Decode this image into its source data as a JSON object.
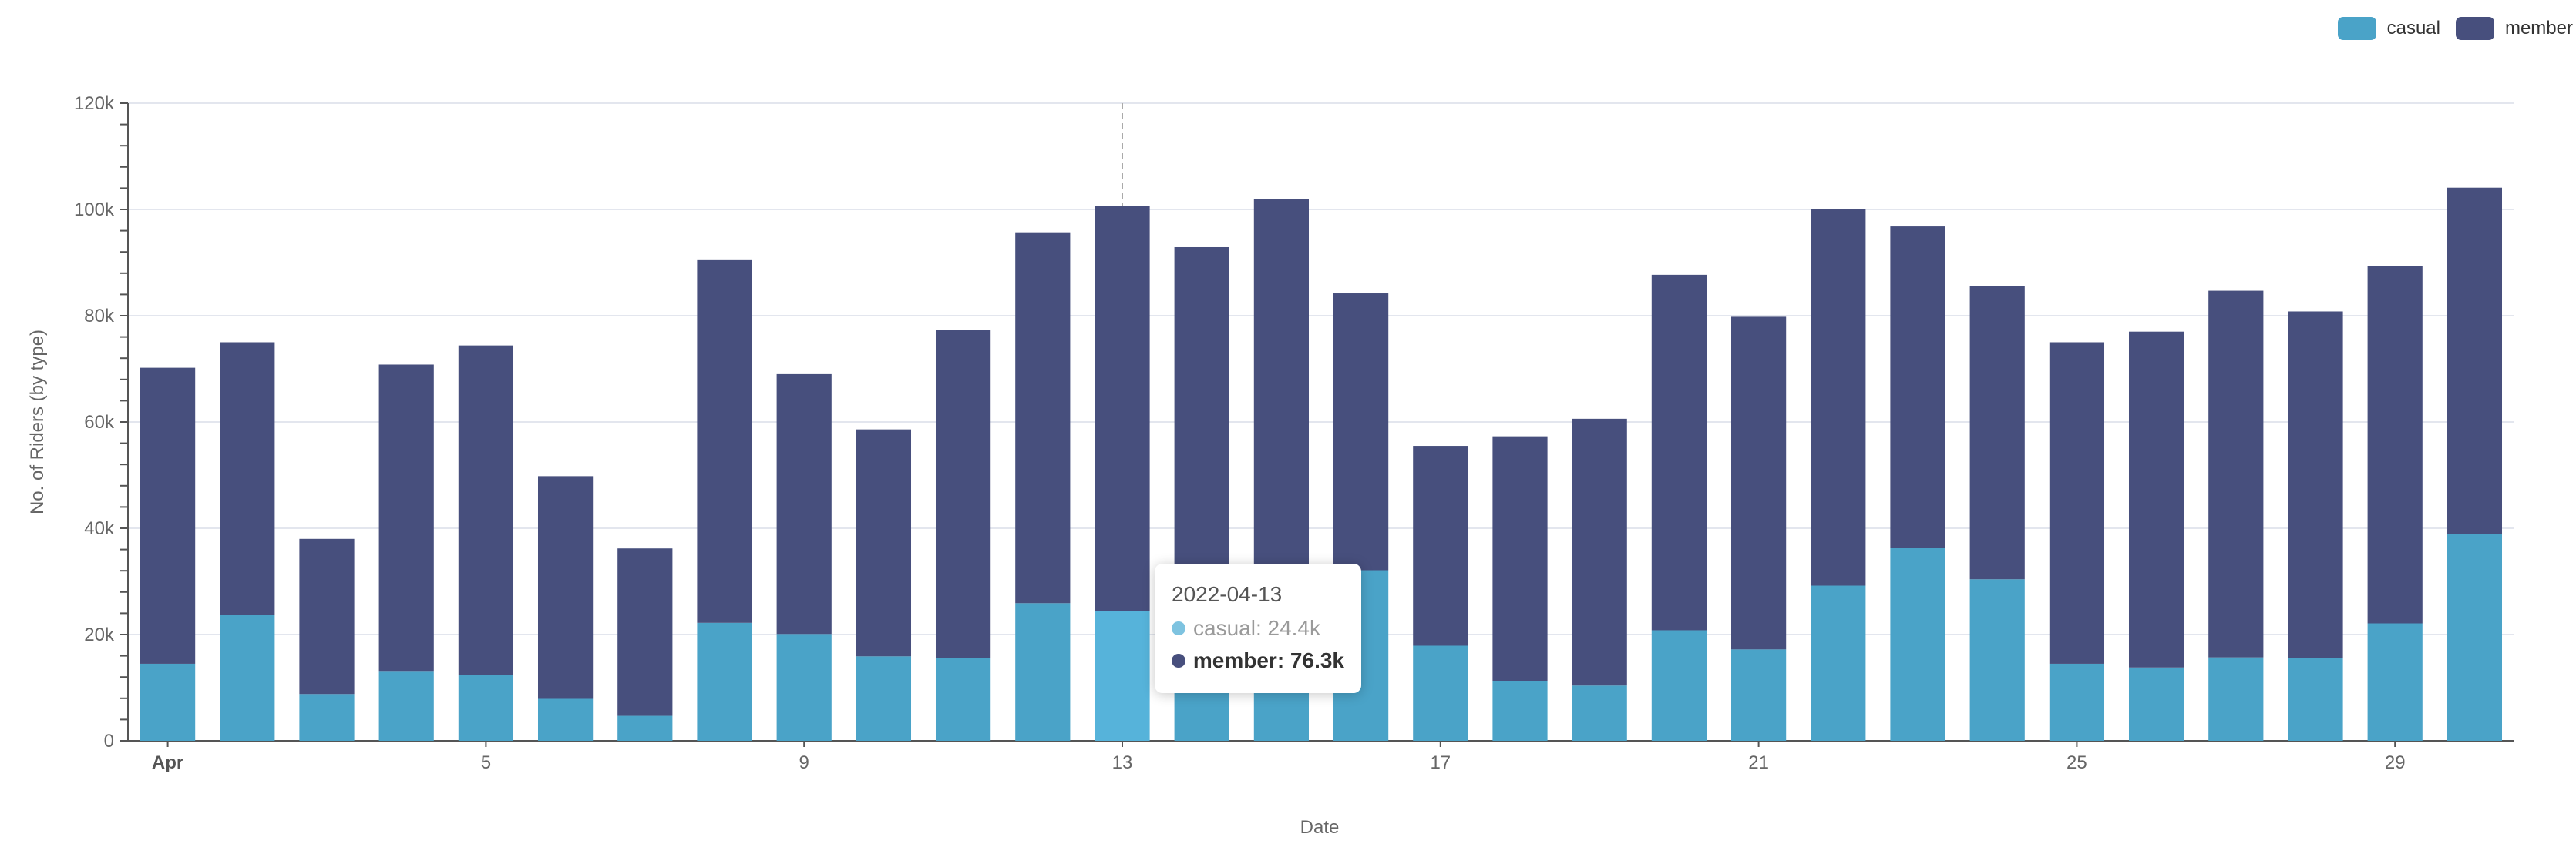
{
  "chart_data": {
    "type": "bar",
    "stacked": true,
    "x": [
      "2022-04-01",
      "2022-04-02",
      "2022-04-03",
      "2022-04-04",
      "2022-04-05",
      "2022-04-06",
      "2022-04-07",
      "2022-04-08",
      "2022-04-09",
      "2022-04-10",
      "2022-04-11",
      "2022-04-12",
      "2022-04-13",
      "2022-04-14",
      "2022-04-15",
      "2022-04-16",
      "2022-04-17",
      "2022-04-18",
      "2022-04-19",
      "2022-04-20",
      "2022-04-21",
      "2022-04-22",
      "2022-04-23",
      "2022-04-24",
      "2022-04-25",
      "2022-04-26",
      "2022-04-27",
      "2022-04-28",
      "2022-04-29",
      "2022-04-30"
    ],
    "series": [
      {
        "name": "casual",
        "color": "#4aa3c8",
        "values": [
          14500,
          23700,
          8800,
          13000,
          12400,
          7900,
          4700,
          22200,
          20100,
          15900,
          15600,
          25900,
          24400,
          28000,
          31000,
          32100,
          17900,
          11200,
          10400,
          20800,
          17200,
          29200,
          36300,
          30400,
          14500,
          13800,
          15700,
          15600,
          22100,
          38900
        ]
      },
      {
        "name": "member",
        "color": "#474f7d",
        "values": [
          55700,
          51300,
          29200,
          57800,
          62000,
          41900,
          31500,
          68400,
          48900,
          42700,
          61700,
          69800,
          76300,
          64900,
          71000,
          52100,
          37600,
          46100,
          50200,
          66900,
          62600,
          70800,
          60500,
          55200,
          60500,
          63200,
          69000,
          65200,
          67300,
          65200
        ]
      }
    ],
    "xlabel": "Date",
    "ylabel": "No. of Riders (by type)",
    "ylim": [
      0,
      120000
    ],
    "y_ticks": [
      0,
      20000,
      40000,
      60000,
      80000,
      100000,
      120000
    ],
    "y_tick_labels": [
      "0",
      "20k",
      "40k",
      "60k",
      "80k",
      "100k",
      "120k"
    ],
    "x_tick_labels": [
      {
        "index": 0,
        "label": "Apr",
        "bold": true
      },
      {
        "index": 4,
        "label": "5"
      },
      {
        "index": 8,
        "label": "9"
      },
      {
        "index": 12,
        "label": "13"
      },
      {
        "index": 16,
        "label": "17"
      },
      {
        "index": 20,
        "label": "21"
      },
      {
        "index": 24,
        "label": "25"
      },
      {
        "index": 28,
        "label": "29"
      }
    ],
    "grid": true,
    "legend_position": "top-right",
    "highlight_index": 12,
    "highlight_color": "#56b3da"
  },
  "legend": [
    {
      "label": "casual",
      "color": "#4aa3c8"
    },
    {
      "label": "member",
      "color": "#474f7d"
    }
  ],
  "tooltip": {
    "title": "2022-04-13",
    "casual_text": "casual: 24.4k",
    "member_text": "member: 76.3k",
    "casual_color": "#7ec3e0",
    "member_color": "#474f7d"
  }
}
